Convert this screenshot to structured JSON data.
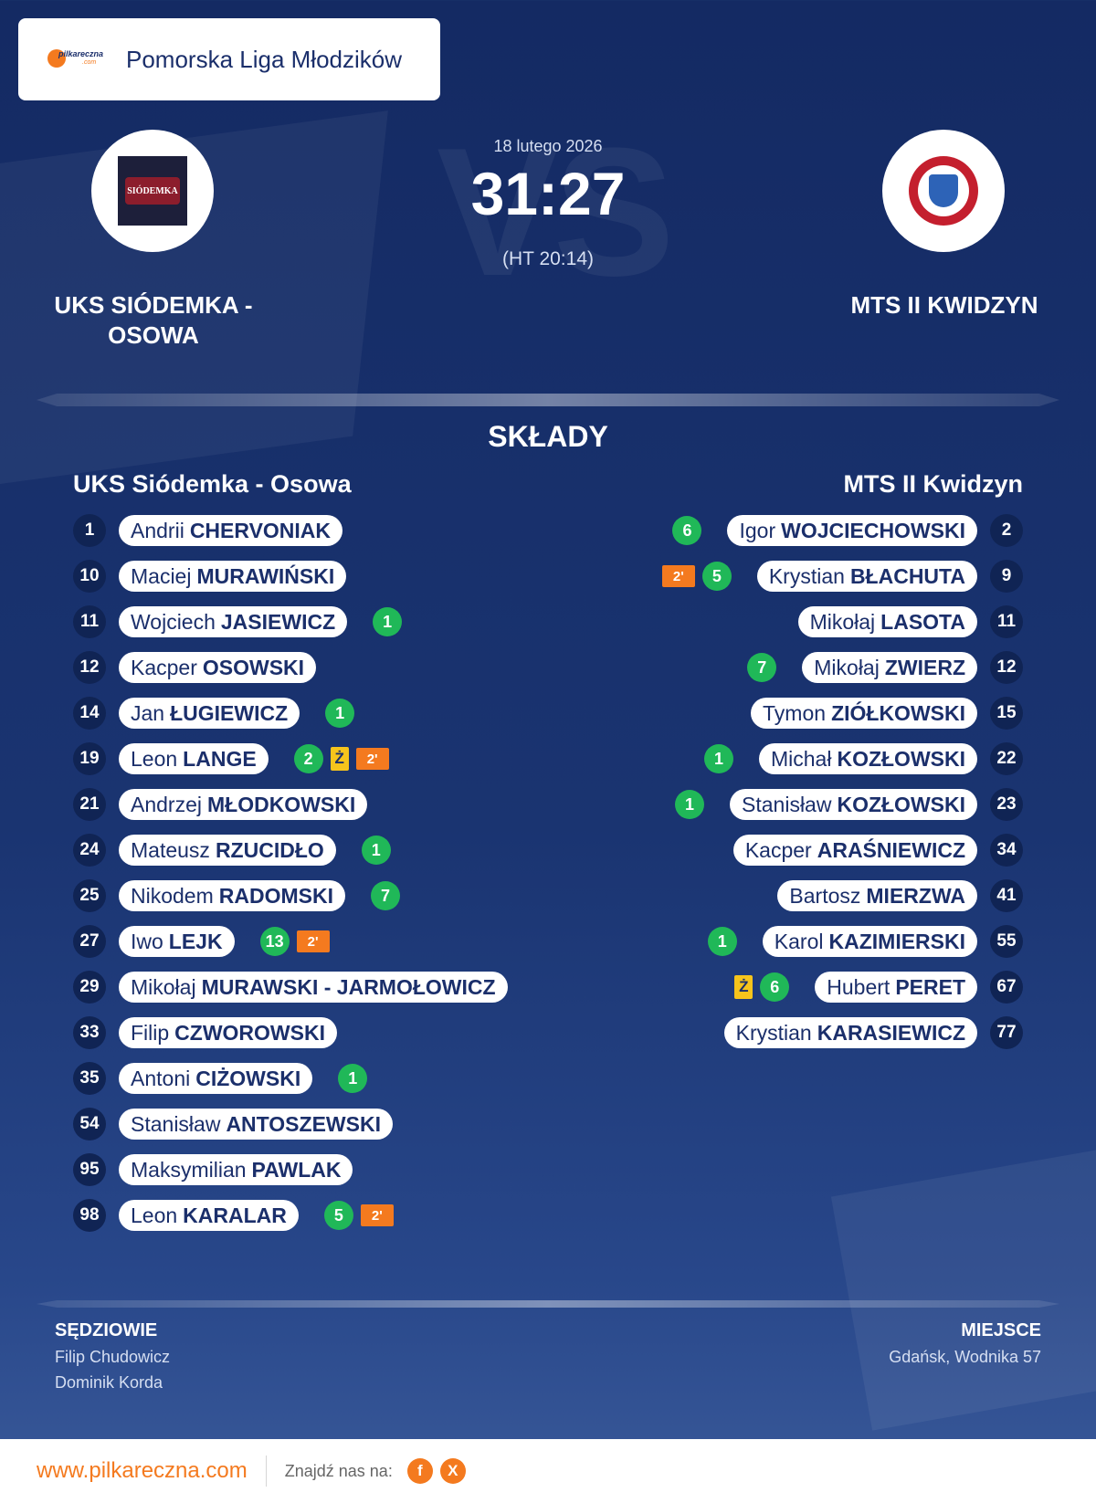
{
  "league": {
    "brand": "pilkareczna.com",
    "name": "Pomorska Liga Młodzików"
  },
  "match": {
    "date": "18 lutego 2026",
    "score": "31:27",
    "halftime": "(HT 20:14)",
    "home_name": "UKS SIÓDEMKA - OSOWA",
    "away_name": "MTS II KWIDZYN",
    "vs": "VS"
  },
  "logos": {
    "home_text": "SIÓDEMKA"
  },
  "lineups": {
    "title": "SKŁADY",
    "home_title": "UKS Siódemka - Osowa",
    "away_title": "MTS II Kwidzyn",
    "home": [
      {
        "num": "1",
        "first": "Andrii",
        "last": "CHERVONIAK"
      },
      {
        "num": "10",
        "first": "Maciej",
        "last": "MURAWIŃSKI"
      },
      {
        "num": "11",
        "first": "Wojciech",
        "last": "JASIEWICZ",
        "goals": "1"
      },
      {
        "num": "12",
        "first": "Kacper",
        "last": "OSOWSKI"
      },
      {
        "num": "14",
        "first": "Jan",
        "last": "ŁUGIEWICZ",
        "goals": "1"
      },
      {
        "num": "19",
        "first": "Leon",
        "last": "LANGE",
        "goals": "2",
        "yellow": "Ż",
        "suspension": "2'"
      },
      {
        "num": "21",
        "first": "Andrzej",
        "last": "MŁODKOWSKI"
      },
      {
        "num": "24",
        "first": "Mateusz",
        "last": "RZUCIDŁO",
        "goals": "1"
      },
      {
        "num": "25",
        "first": "Nikodem",
        "last": "RADOMSKI",
        "goals": "7"
      },
      {
        "num": "27",
        "first": "Iwo",
        "last": "LEJK",
        "goals": "13",
        "suspension": "2'"
      },
      {
        "num": "29",
        "first": "Mikołaj",
        "last": "MURAWSKI - JARMOŁOWICZ"
      },
      {
        "num": "33",
        "first": "Filip",
        "last": "CZWOROWSKI"
      },
      {
        "num": "35",
        "first": "Antoni",
        "last": "CIŻOWSKI",
        "goals": "1"
      },
      {
        "num": "54",
        "first": "Stanisław",
        "last": "ANTOSZEWSKI"
      },
      {
        "num": "95",
        "first": "Maksymilian",
        "last": "PAWLAK"
      },
      {
        "num": "98",
        "first": "Leon",
        "last": "KARALAR",
        "goals": "5",
        "suspension": "2'"
      }
    ],
    "away": [
      {
        "num": "2",
        "first": "Igor",
        "last": "WOJCIECHOWSKI",
        "goals": "6"
      },
      {
        "num": "9",
        "first": "Krystian",
        "last": "BŁACHUTA",
        "goals": "5",
        "suspension": "2'"
      },
      {
        "num": "11",
        "first": "Mikołaj",
        "last": "LASOTA"
      },
      {
        "num": "12",
        "first": "Mikołaj",
        "last": "ZWIERZ",
        "goals": "7"
      },
      {
        "num": "15",
        "first": "Tymon",
        "last": "ZIÓŁKOWSKI"
      },
      {
        "num": "22",
        "first": "Michał",
        "last": "KOZŁOWSKI",
        "goals": "1"
      },
      {
        "num": "23",
        "first": "Stanisław",
        "last": "KOZŁOWSKI",
        "goals": "1"
      },
      {
        "num": "34",
        "first": "Kacper",
        "last": "ARAŚNIEWICZ"
      },
      {
        "num": "41",
        "first": "Bartosz",
        "last": "MIERZWA"
      },
      {
        "num": "55",
        "first": "Karol",
        "last": "KAZIMIERSKI",
        "goals": "1"
      },
      {
        "num": "67",
        "first": "Hubert",
        "last": "PERET",
        "goals": "6",
        "yellow": "Ż"
      },
      {
        "num": "77",
        "first": "Krystian",
        "last": "KARASIEWICZ"
      }
    ]
  },
  "officials": {
    "title": "SĘDZIOWIE",
    "names": [
      "Filip Chudowicz",
      "Dominik Korda"
    ]
  },
  "venue": {
    "title": "MIEJSCE",
    "value": "Gdańsk, Wodnika 57"
  },
  "footer": {
    "site": "www.pilkareczna.com",
    "find_label": "Znajdź nas na:",
    "social": [
      {
        "icon": "facebook-icon",
        "glyph": "f"
      },
      {
        "icon": "x-icon",
        "glyph": "X"
      }
    ]
  },
  "colors": {
    "accent": "#f47a1f",
    "navy": "#1b2f6b",
    "goal": "#20b858",
    "yellow": "#f6c41c"
  }
}
